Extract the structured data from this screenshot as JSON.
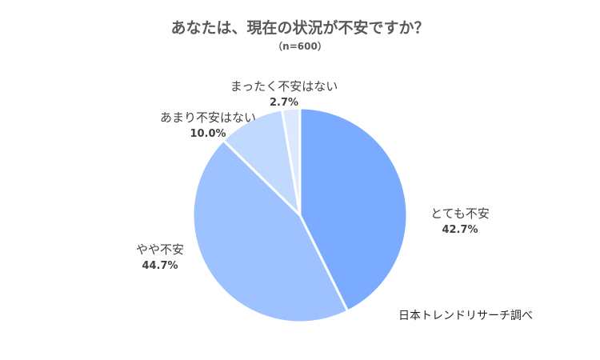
{
  "chart": {
    "title": "あなたは、現在の状況が不安ですか？",
    "subtitle": "（n=600）",
    "source": "日本トレンドリサーチ調べ"
  },
  "chart_data": {
    "type": "pie",
    "title": "あなたは、現在の状況が不安ですか？",
    "subtitle": "（n=600）",
    "slices": [
      {
        "label": "とても不安",
        "value": 42.7,
        "display": "42.7%",
        "color": "#7aabff"
      },
      {
        "label": "やや不安",
        "value": 44.7,
        "display": "44.7%",
        "color": "#9ec2ff"
      },
      {
        "label": "あまり不安はない",
        "value": 10.0,
        "display": "10.0%",
        "color": "#c2d9ff"
      },
      {
        "label": "まったく不安はない",
        "value": 2.7,
        "display": "2.7%",
        "color": "#dde9ff"
      }
    ],
    "start_angle": "12 o'clock",
    "direction": "clockwise"
  }
}
